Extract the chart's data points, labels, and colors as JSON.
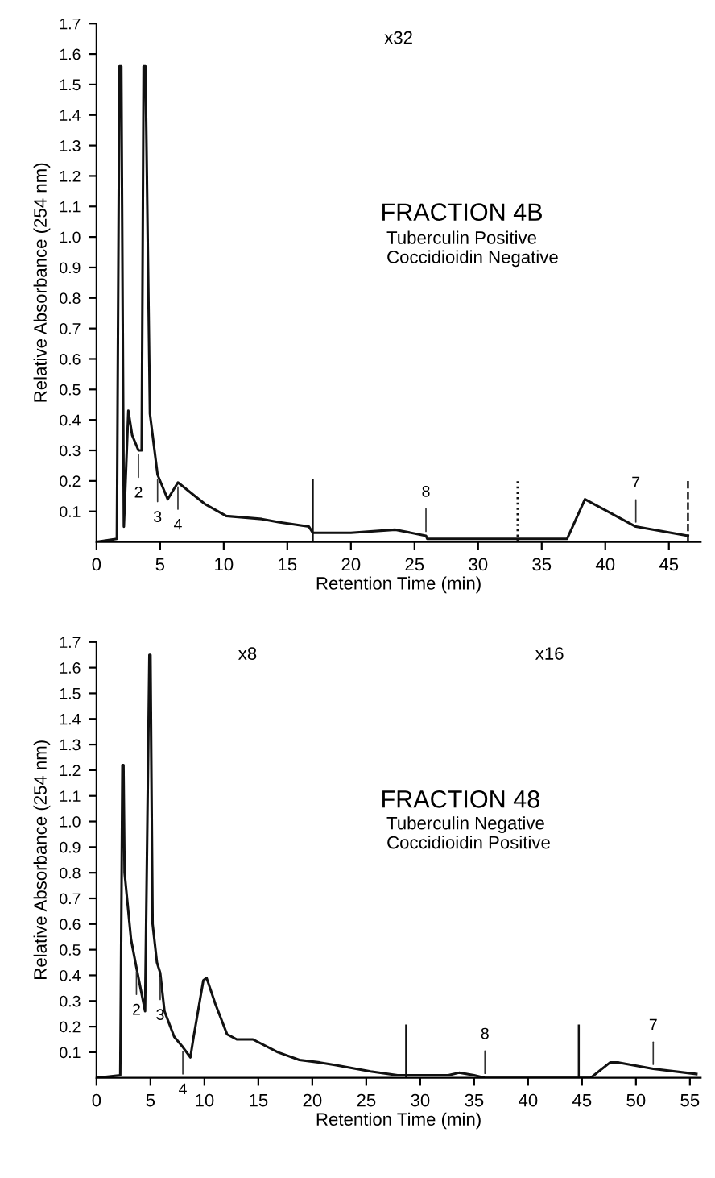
{
  "chart_data": [
    {
      "type": "line",
      "title": "FRACTION 4B",
      "subtitle": "Tuberculin Positive\nCoccidioidin Negative",
      "xlabel": "Retention Time (min)",
      "ylabel": "Relative Absorbance (254 nm)",
      "series": [
        {
          "color": "#111111",
          "x": [
            0,
            1.6,
            1.8,
            1.95,
            2.15,
            2.5,
            2.8,
            3.3,
            3.55,
            3.7,
            3.85,
            4.2,
            4.8,
            5.6,
            6.4,
            8.5,
            10.2,
            13,
            14.3,
            16.7,
            17,
            20,
            23.5,
            25.9,
            26,
            30,
            37,
            38.4,
            42.4,
            46.5
          ],
          "values": [
            0,
            0.01,
            1.56,
            1.56,
            0.05,
            0.43,
            0.35,
            0.3,
            0.3,
            1.56,
            1.56,
            0.42,
            0.22,
            0.14,
            0.195,
            0.125,
            0.085,
            0.075,
            0.065,
            0.05,
            0.03,
            0.03,
            0.04,
            0.02,
            0.01,
            0.01,
            0.01,
            0.14,
            0.05,
            0.02
          ]
        }
      ],
      "xlim": [
        0,
        47.5
      ],
      "ylim": [
        0,
        1.7
      ],
      "xticks": [
        0,
        5,
        10,
        15,
        20,
        25,
        30,
        35,
        40,
        45
      ],
      "yticks": [
        {
          "value": 0.1,
          "label": "0.1"
        },
        {
          "value": 0.2,
          "label": "0.2"
        },
        {
          "value": 0.3,
          "label": "0.3"
        },
        {
          "value": 0.4,
          "label": "0.4"
        },
        {
          "value": 0.5,
          "label": "0.5"
        },
        {
          "value": 0.6,
          "label": "0.6"
        },
        {
          "value": 0.7,
          "label": "0.7"
        },
        {
          "value": 0.8,
          "label": "0.8"
        },
        {
          "value": 0.9,
          "label": "0.9"
        },
        {
          "value": 1.0,
          "label": "1.0"
        },
        {
          "value": 1.1,
          "label": "1.1"
        },
        {
          "value": 1.2,
          "label": "1.2"
        },
        {
          "value": 1.3,
          "label": "1.3"
        },
        {
          "value": 1.4,
          "label": "1.4"
        },
        {
          "value": 1.5,
          "label": "1.5"
        },
        {
          "value": 1.6,
          "label": "1.6"
        },
        {
          "value": 1.7,
          "label": "1.7"
        }
      ],
      "ref_lines": [
        {
          "axis": "x",
          "value": 17,
          "line_style": "solid"
        },
        {
          "axis": "x",
          "value": 33.1,
          "line_style": "dotted"
        },
        {
          "axis": "x",
          "value": 46.5,
          "line_style": "dashed"
        }
      ],
      "annotations": [
        "x32",
        {
          "text": "2",
          "x": 3.3,
          "y": 0.3
        },
        {
          "text": "3",
          "x": 4.8,
          "y": 0.22
        },
        {
          "text": "4",
          "x": 6.4,
          "y": 0.195
        },
        {
          "text": "8",
          "x": 25.9,
          "y": 0.02
        },
        {
          "text": "7",
          "x": 42.4,
          "y": 0.05
        }
      ],
      "grid": false,
      "legend": false
    },
    {
      "type": "line",
      "title": "FRACTION 48",
      "subtitle": "Tuberculin Negative\nCoccidioidin Positive",
      "xlabel": "Retention Time (min)",
      "ylabel": "Relative Absorbance (254 nm)",
      "series": [
        {
          "color": "#111111",
          "x": [
            0,
            2.2,
            2.4,
            2.5,
            2.6,
            3.2,
            3.7,
            4.5,
            4.9,
            5.0,
            5.2,
            5.6,
            5.9,
            6.3,
            7.2,
            8.0,
            8.7,
            9.0,
            9.9,
            10.2,
            11,
            12.1,
            13,
            14.5,
            16.8,
            18.8,
            20.7,
            22.1,
            25.4,
            27.9,
            32.6,
            33.6,
            35,
            36,
            45.8,
            47.6,
            48.4,
            51.6,
            55.6
          ],
          "values": [
            0,
            0.01,
            1.22,
            1.22,
            0.8,
            0.54,
            0.43,
            0.26,
            1.65,
            1.65,
            0.6,
            0.45,
            0.41,
            0.26,
            0.16,
            0.12,
            0.08,
            0.16,
            0.38,
            0.39,
            0.29,
            0.17,
            0.15,
            0.15,
            0.1,
            0.07,
            0.06,
            0.05,
            0.025,
            0.01,
            0.01,
            0.02,
            0.01,
            0,
            0,
            0.06,
            0.06,
            0.035,
            0.015
          ]
        }
      ],
      "xlim": [
        0,
        56
      ],
      "ylim": [
        0,
        1.7
      ],
      "xticks": [
        0,
        5,
        10,
        15,
        20,
        25,
        30,
        35,
        40,
        45,
        50,
        55
      ],
      "yticks": [
        {
          "value": 0.1,
          "label": "0.1"
        },
        {
          "value": 0.2,
          "label": "0.2"
        },
        {
          "value": 0.3,
          "label": "0.3"
        },
        {
          "value": 0.4,
          "label": "0.4"
        },
        {
          "value": 0.5,
          "label": "0.5"
        },
        {
          "value": 0.6,
          "label": "0.6"
        },
        {
          "value": 0.7,
          "label": "0.7"
        },
        {
          "value": 0.8,
          "label": "0.8"
        },
        {
          "value": 0.9,
          "label": "0.9"
        },
        {
          "value": 1.0,
          "label": "1.0"
        },
        {
          "value": 1.1,
          "label": "1.1"
        },
        {
          "value": 1.2,
          "label": "1.2"
        },
        {
          "value": 1.3,
          "label": "1.3"
        },
        {
          "value": 1.4,
          "label": "1.4"
        },
        {
          "value": 1.5,
          "label": "1.5"
        },
        {
          "value": 1.6,
          "label": "1.6"
        },
        {
          "value": 1.7,
          "label": "1.7"
        }
      ],
      "ref_lines": [
        {
          "axis": "x",
          "value": 28.7,
          "line_style": "solid"
        },
        {
          "axis": "x",
          "value": 44.7,
          "line_style": "solid"
        }
      ],
      "annotations": [
        "x8",
        "x16",
        {
          "text": "2",
          "x": 3.7,
          "y": 0.43
        },
        {
          "text": "3",
          "x": 5.9,
          "y": 0.41
        },
        {
          "text": "4",
          "x": 8.0,
          "y": 0.12
        },
        {
          "text": "8",
          "x": 36,
          "y": 0
        },
        {
          "text": "7",
          "x": 51.6,
          "y": 0.035
        }
      ],
      "grid": false,
      "legend": false
    }
  ]
}
